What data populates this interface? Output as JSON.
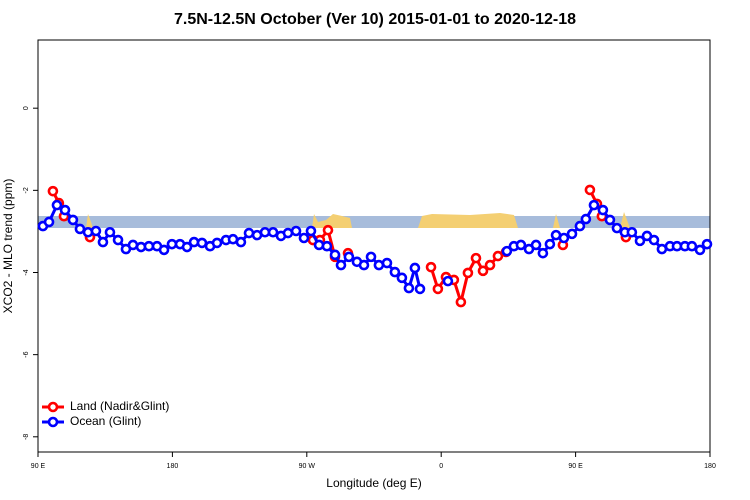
{
  "chart_data": {
    "type": "line",
    "title": "7.5N-12.5N October (Ver 10)   2015-01-01 to 2020-12-18",
    "x_label": "Longitude (deg E)",
    "y_label": "XCO2 - MLO trend (ppm)",
    "xlim": [
      90,
      540
    ],
    "xticks": [
      {
        "value": 90,
        "label": "90 E"
      },
      180,
      {
        "value": 270,
        "label": "90 W"
      },
      {
        "value": 360,
        "label": "0"
      },
      {
        "value": 450,
        "label": "90 E"
      },
      {
        "value": 540,
        "label": "180"
      }
    ],
    "ylim": [
      -8.37,
      1.66
    ],
    "yticks": [
      0,
      -2,
      -4,
      -6,
      -8
    ],
    "legend": "lower left",
    "series": [
      {
        "name": "Land (Nadir&Glint)",
        "color": "#ff0000",
        "x": [
          100,
          104,
          107.4,
          115,
          124.8,
          200,
          274.1,
          278.8,
          284.2,
          288.9,
          292,
          297.6,
          330,
          353.2,
          357.8,
          363.2,
          368.5,
          373.2,
          377.9,
          383.3,
          388,
          392.7,
          398,
          403.4,
          420,
          441.5,
          450,
          459.6,
          464.3,
          467.6,
          475,
          483.7
        ],
        "values": [
          -2.02,
          -2.31,
          -2.63,
          null,
          -3.14,
          null,
          -3.21,
          -3.21,
          -2.97,
          -3.62,
          null,
          -3.53,
          null,
          -3.87,
          -4.4,
          -4.11,
          -4.18,
          -4.72,
          -4.01,
          -3.65,
          -3.96,
          -3.82,
          -3.6,
          -3.5,
          null,
          -3.33,
          null,
          -1.99,
          -2.33,
          -2.63,
          null,
          -3.14
        ]
      },
      {
        "name": "Ocean (Glint)",
        "color": "#0000ff",
        "x": [
          93.3,
          97.4,
          102.7,
          108.1,
          113.4,
          118.1,
          123.5,
          128.8,
          133.5,
          138.2,
          143.6,
          148.9,
          153.6,
          159,
          164.3,
          169.7,
          174.4,
          179.7,
          185.1,
          189.8,
          194.5,
          199.8,
          205.2,
          209.9,
          215.9,
          220.6,
          225.9,
          231.3,
          236.7,
          242,
          247.4,
          252.7,
          257.4,
          262.8,
          268.1,
          272.8,
          278.2,
          283.5,
          288.9,
          292.9,
          298.2,
          303.6,
          308.3,
          313,
          318.3,
          323.7,
          329,
          333.7,
          338.4,
          342.4,
          345.8,
          355,
          364.5,
          385,
          404,
          408.7,
          413.4,
          418.8,
          423.5,
          428.1,
          432.8,
          436.9,
          442.2,
          447.6,
          452.9,
          456.9,
          462.3,
          468.3,
          473,
          477.7,
          483,
          487.7,
          493.1,
          497.8,
          502.5,
          507.8,
          513.2,
          517.9,
          523.2,
          527.9,
          533.3,
          538
        ],
        "values": [
          -2.87,
          -2.77,
          -2.36,
          -2.48,
          -2.72,
          -2.94,
          -3.02,
          -2.99,
          -3.26,
          -3.02,
          -3.21,
          -3.43,
          -3.33,
          -3.38,
          -3.36,
          -3.36,
          -3.45,
          -3.31,
          -3.31,
          -3.38,
          -3.26,
          -3.28,
          -3.36,
          -3.28,
          -3.21,
          -3.19,
          -3.26,
          -3.04,
          -3.09,
          -3.02,
          -3.02,
          -3.11,
          -3.04,
          -2.99,
          -3.16,
          -2.99,
          -3.33,
          -3.36,
          -3.57,
          -3.82,
          -3.62,
          -3.74,
          -3.82,
          -3.62,
          -3.82,
          -3.77,
          -3.99,
          -4.13,
          -4.38,
          -3.89,
          -4.4,
          null,
          -4.21,
          null,
          -3.48,
          -3.36,
          -3.33,
          -3.43,
          -3.33,
          -3.53,
          -3.31,
          -3.09,
          -3.16,
          -3.06,
          -2.87,
          -2.7,
          -2.36,
          -2.48,
          -2.72,
          -2.92,
          -3.02,
          -3.02,
          -3.23,
          -3.11,
          -3.21,
          -3.43,
          -3.36,
          -3.36,
          -3.36,
          -3.36,
          -3.45,
          -3.31
        ]
      }
    ]
  }
}
